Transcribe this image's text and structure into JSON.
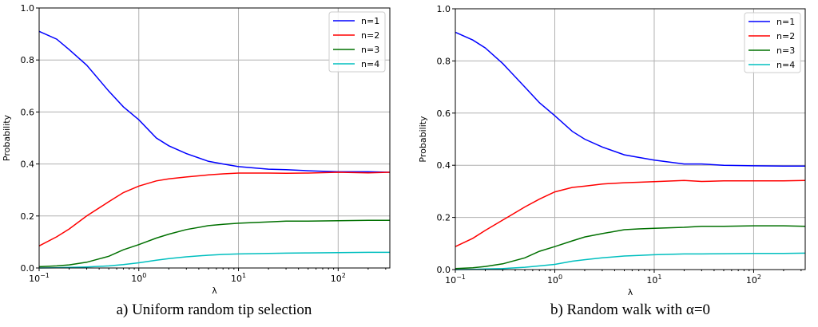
{
  "chart_data": [
    {
      "type": "line",
      "caption": "a) Uniform random tip selection",
      "xlabel": "λ",
      "ylabel": "Probability",
      "xscale": "log",
      "xlim": [
        0.1,
        330
      ],
      "ylim": [
        0,
        1
      ],
      "xticks": [
        {
          "value": 0.1,
          "base": "10",
          "exp": "−1"
        },
        {
          "value": 1,
          "base": "10",
          "exp": "0"
        },
        {
          "value": 10,
          "base": "10",
          "exp": "1"
        },
        {
          "value": 100,
          "base": "10",
          "exp": "2"
        }
      ],
      "yticks": [
        "0.0",
        "0.2",
        "0.4",
        "0.6",
        "0.8",
        "1.0"
      ],
      "grid": true,
      "legend": "top-right",
      "x": [
        0.1,
        0.15,
        0.2,
        0.3,
        0.5,
        0.7,
        1,
        1.5,
        2,
        3,
        5,
        7,
        10,
        20,
        30,
        50,
        100,
        200,
        330
      ],
      "series": [
        {
          "name": "n=1",
          "color": "#0000ff",
          "values": [
            0.91,
            0.88,
            0.84,
            0.78,
            0.68,
            0.62,
            0.57,
            0.5,
            0.47,
            0.44,
            0.41,
            0.4,
            0.39,
            0.38,
            0.378,
            0.374,
            0.37,
            0.37,
            0.368
          ]
        },
        {
          "name": "n=2",
          "color": "#ff0000",
          "values": [
            0.085,
            0.12,
            0.15,
            0.2,
            0.255,
            0.29,
            0.315,
            0.335,
            0.343,
            0.35,
            0.358,
            0.362,
            0.365,
            0.365,
            0.364,
            0.365,
            0.368,
            0.366,
            0.368
          ]
        },
        {
          "name": "n=3",
          "color": "#007000",
          "values": [
            0.005,
            0.008,
            0.012,
            0.022,
            0.045,
            0.07,
            0.09,
            0.115,
            0.13,
            0.148,
            0.163,
            0.168,
            0.172,
            0.177,
            0.18,
            0.18,
            0.182,
            0.183,
            0.183
          ]
        },
        {
          "name": "n=4",
          "color": "#00bfbf",
          "values": [
            0,
            0.001,
            0.002,
            0.004,
            0.008,
            0.013,
            0.02,
            0.03,
            0.036,
            0.043,
            0.049,
            0.052,
            0.054,
            0.056,
            0.057,
            0.058,
            0.059,
            0.06,
            0.06
          ]
        }
      ]
    },
    {
      "type": "line",
      "caption": "b) Random walk with α=0",
      "xlabel": "λ",
      "ylabel": "Probability",
      "xscale": "log",
      "xlim": [
        0.1,
        330
      ],
      "ylim": [
        0,
        1
      ],
      "xticks": [
        {
          "value": 0.1,
          "base": "10",
          "exp": "−1"
        },
        {
          "value": 1,
          "base": "10",
          "exp": "0"
        },
        {
          "value": 10,
          "base": "10",
          "exp": "1"
        },
        {
          "value": 100,
          "base": "10",
          "exp": "2"
        }
      ],
      "yticks": [
        "0.0",
        "0.2",
        "0.4",
        "0.6",
        "0.8",
        "1.0"
      ],
      "grid": true,
      "legend": "top-right",
      "x": [
        0.1,
        0.15,
        0.2,
        0.3,
        0.5,
        0.7,
        1,
        1.5,
        2,
        3,
        5,
        7,
        10,
        20,
        30,
        50,
        100,
        200,
        330
      ],
      "series": [
        {
          "name": "n=1",
          "color": "#0000ff",
          "values": [
            0.91,
            0.88,
            0.85,
            0.79,
            0.7,
            0.64,
            0.59,
            0.53,
            0.5,
            0.47,
            0.44,
            0.43,
            0.42,
            0.405,
            0.405,
            0.4,
            0.398,
            0.397,
            0.397
          ]
        },
        {
          "name": "n=2",
          "color": "#ff0000",
          "values": [
            0.088,
            0.12,
            0.15,
            0.19,
            0.24,
            0.27,
            0.298,
            0.315,
            0.32,
            0.328,
            0.333,
            0.335,
            0.337,
            0.342,
            0.338,
            0.34,
            0.34,
            0.34,
            0.342
          ]
        },
        {
          "name": "n=3",
          "color": "#007000",
          "values": [
            0.004,
            0.007,
            0.012,
            0.022,
            0.045,
            0.07,
            0.088,
            0.11,
            0.125,
            0.138,
            0.153,
            0.156,
            0.158,
            0.162,
            0.166,
            0.166,
            0.168,
            0.168,
            0.166
          ]
        },
        {
          "name": "n=4",
          "color": "#00bfbf",
          "values": [
            0,
            0.001,
            0.002,
            0.004,
            0.009,
            0.014,
            0.02,
            0.032,
            0.038,
            0.045,
            0.052,
            0.054,
            0.057,
            0.06,
            0.06,
            0.061,
            0.062,
            0.062,
            0.063
          ]
        }
      ]
    }
  ]
}
